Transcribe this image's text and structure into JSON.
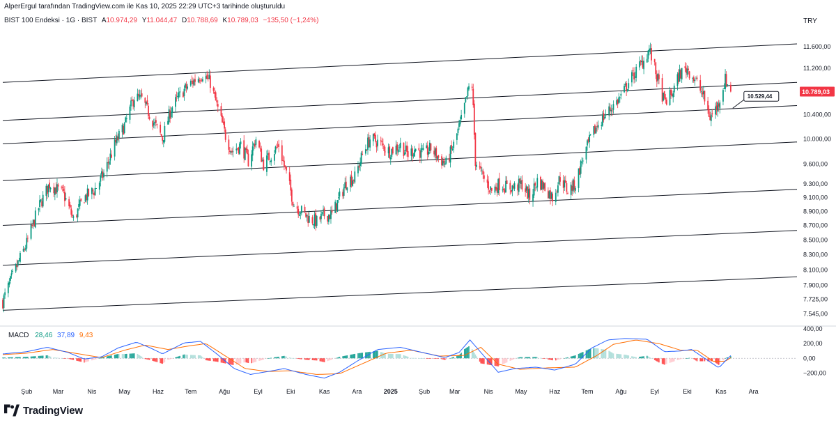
{
  "header": {
    "attribution": "AlperErgul tarafından TradingView.com ile Kas 10, 2025 22:29 UTC+3 tarihinde oluşturuldu",
    "symbol": "BIST 100 Endeksi · 1G · BIST",
    "open_label": "A",
    "open": "10.974,29",
    "high_label": "Y",
    "high": "11.044,47",
    "low_label": "D",
    "low": "10.788,69",
    "close_label": "K",
    "close": "10.789,03",
    "change": "−135,50 (−1,24%)"
  },
  "currency_button": "TRY",
  "macd_legend": {
    "label": "MACD",
    "hist": "28,46",
    "macd": "37,89",
    "signal": "9,43"
  },
  "brand": {
    "name": "TradingView"
  },
  "colors": {
    "up": "#089981",
    "down": "#f23645",
    "macd": "#2962ff",
    "signal": "#ff6d00",
    "channel": "#131722"
  },
  "chart_data": [
    {
      "type": "candlestick",
      "title": "BIST 100 Endeksi · 1G · BIST",
      "interval": "1G",
      "y_scale": "log",
      "y_ticks": [
        "11.600,00",
        "11.200,00",
        "10.800,00",
        "10.400,00",
        "10.000,00",
        "9.600,00",
        "9.300,00",
        "9.100,00",
        "8.900,00",
        "8.700,00",
        "8.500,00",
        "8.300,00",
        "8.100,00",
        "7.900,00",
        "7.725,00",
        "7.545,00"
      ],
      "y_tick_values": [
        11600,
        11200,
        10800,
        10400,
        10000,
        9600,
        9300,
        9100,
        8900,
        8700,
        8500,
        8300,
        8100,
        7900,
        7725,
        7545
      ],
      "ylim": [
        7450,
        11900
      ],
      "x_ticks": [
        "Şub",
        "Mar",
        "Nis",
        "May",
        "Haz",
        "Tem",
        "Ağu",
        "Eyl",
        "Eki",
        "Kas",
        "Ara",
        "2025",
        "Şub",
        "Mar",
        "Nis",
        "May",
        "Haz",
        "Tem",
        "Ağu",
        "Eyl",
        "Eki",
        "Kas",
        "Ara"
      ],
      "x_tick_dates": [
        "2024-02-01",
        "2024-03-01",
        "2024-04-01",
        "2024-05-01",
        "2024-06-01",
        "2024-07-01",
        "2024-08-01",
        "2024-09-01",
        "2024-10-01",
        "2024-11-01",
        "2024-12-01",
        "2025-01-01",
        "2025-02-01",
        "2025-03-01",
        "2025-04-01",
        "2025-05-01",
        "2025-06-01",
        "2025-07-01",
        "2025-08-01",
        "2025-09-01",
        "2025-10-01",
        "2025-11-01",
        "2025-12-01"
      ],
      "xlim": [
        "2024-01-10",
        "2026-01-10"
      ],
      "price_path": [
        [
          "2024-01-10",
          7700
        ],
        [
          "2024-01-20",
          8050
        ],
        [
          "2024-02-01",
          8450
        ],
        [
          "2024-02-12",
          8950
        ],
        [
          "2024-02-22",
          9300
        ],
        [
          "2024-03-06",
          9150
        ],
        [
          "2024-03-15",
          8780
        ],
        [
          "2024-03-25",
          9100
        ],
        [
          "2024-04-03",
          9200
        ],
        [
          "2024-04-12",
          9450
        ],
        [
          "2024-04-22",
          9900
        ],
        [
          "2024-05-02",
          10250
        ],
        [
          "2024-05-10",
          10700
        ],
        [
          "2024-05-17",
          10650
        ],
        [
          "2024-05-27",
          10300
        ],
        [
          "2024-06-05",
          10000
        ],
        [
          "2024-06-13",
          10500
        ],
        [
          "2024-06-24",
          10800
        ],
        [
          "2024-07-05",
          11000
        ],
        [
          "2024-07-12",
          11100
        ],
        [
          "2024-07-19",
          10950
        ],
        [
          "2024-07-25",
          10550
        ],
        [
          "2024-08-02",
          10050
        ],
        [
          "2024-08-08",
          9800
        ],
        [
          "2024-08-16",
          9900
        ],
        [
          "2024-08-23",
          9650
        ],
        [
          "2024-08-30",
          10000
        ],
        [
          "2024-09-06",
          9600
        ],
        [
          "2024-09-13",
          9750
        ],
        [
          "2024-09-20",
          9900
        ],
        [
          "2024-09-27",
          9450
        ],
        [
          "2024-10-04",
          9000
        ],
        [
          "2024-10-11",
          8900
        ],
        [
          "2024-10-18",
          8800
        ],
        [
          "2024-10-25",
          8750
        ],
        [
          "2024-11-01",
          8850
        ],
        [
          "2024-11-08",
          8850
        ],
        [
          "2024-11-15",
          9100
        ],
        [
          "2024-11-22",
          9350
        ],
        [
          "2024-11-29",
          9400
        ],
        [
          "2024-12-06",
          9750
        ],
        [
          "2024-12-13",
          10000
        ],
        [
          "2024-12-20",
          9950
        ],
        [
          "2024-12-31",
          9800
        ],
        [
          "2025-01-10",
          9900
        ],
        [
          "2025-01-17",
          9750
        ],
        [
          "2025-01-24",
          9850
        ],
        [
          "2025-01-31",
          9750
        ],
        [
          "2025-02-07",
          9850
        ],
        [
          "2025-02-14",
          9700
        ],
        [
          "2025-02-21",
          9600
        ],
        [
          "2025-02-28",
          9900
        ],
        [
          "2025-03-07",
          10300
        ],
        [
          "2025-03-14",
          10850
        ],
        [
          "2025-03-17",
          10900
        ],
        [
          "2025-03-20",
          9650
        ],
        [
          "2025-03-27",
          9400
        ],
        [
          "2025-04-04",
          9200
        ],
        [
          "2025-04-11",
          9300
        ],
        [
          "2025-04-18",
          9250
        ],
        [
          "2025-04-25",
          9250
        ],
        [
          "2025-05-02",
          9300
        ],
        [
          "2025-05-09",
          9100
        ],
        [
          "2025-05-16",
          9350
        ],
        [
          "2025-05-23",
          9250
        ],
        [
          "2025-05-30",
          9100
        ],
        [
          "2025-06-06",
          9400
        ],
        [
          "2025-06-13",
          9200
        ],
        [
          "2025-06-20",
          9300
        ],
        [
          "2025-06-27",
          9700
        ],
        [
          "2025-07-04",
          10000
        ],
        [
          "2025-07-11",
          10250
        ],
        [
          "2025-07-18",
          10400
        ],
        [
          "2025-07-25",
          10550
        ],
        [
          "2025-08-01",
          10700
        ],
        [
          "2025-08-08",
          10950
        ],
        [
          "2025-08-15",
          11150
        ],
        [
          "2025-08-22",
          11350
        ],
        [
          "2025-08-27",
          11550
        ],
        [
          "2025-09-03",
          11050
        ],
        [
          "2025-09-10",
          10600
        ],
        [
          "2025-09-17",
          10750
        ],
        [
          "2025-09-24",
          11100
        ],
        [
          "2025-10-01",
          11200
        ],
        [
          "2025-10-08",
          11000
        ],
        [
          "2025-10-15",
          10750
        ],
        [
          "2025-10-22",
          10350
        ],
        [
          "2025-10-29",
          10550
        ],
        [
          "2025-11-05",
          11000
        ],
        [
          "2025-11-10",
          10789
        ]
      ],
      "channel_lines": [
        [
          [
            "2024-01-10",
            10950
          ],
          [
            "2026-01-10",
            11650
          ]
        ],
        [
          [
            "2024-01-10",
            10300
          ],
          [
            "2026-01-10",
            10950
          ]
        ],
        [
          [
            "2024-01-10",
            9920
          ],
          [
            "2026-01-10",
            10550
          ]
        ],
        [
          [
            "2024-01-10",
            9350
          ],
          [
            "2026-01-10",
            9950
          ]
        ],
        [
          [
            "2024-01-10",
            8700
          ],
          [
            "2026-01-10",
            9220
          ]
        ],
        [
          [
            "2024-01-10",
            8160
          ],
          [
            "2026-01-10",
            8630
          ]
        ],
        [
          [
            "2024-01-10",
            7590
          ],
          [
            "2026-01-10",
            8010
          ]
        ]
      ],
      "last_price": "10.789,03",
      "annotation": {
        "label": "10.529,44",
        "value": 10529.44,
        "date": "2025-11-17"
      }
    },
    {
      "type": "macd",
      "title": "MACD",
      "y_ticks": [
        "400,00",
        "200,00",
        "0,00",
        "−200,00"
      ],
      "y_tick_values": [
        400,
        200,
        0,
        -200
      ],
      "ylim": [
        -320,
        420
      ],
      "macd_path": [
        [
          "2024-01-10",
          60
        ],
        [
          "2024-02-01",
          90
        ],
        [
          "2024-02-20",
          150
        ],
        [
          "2024-03-10",
          80
        ],
        [
          "2024-03-25",
          -10
        ],
        [
          "2024-04-10",
          20
        ],
        [
          "2024-04-25",
          140
        ],
        [
          "2024-05-12",
          220
        ],
        [
          "2024-05-25",
          140
        ],
        [
          "2024-06-05",
          60
        ],
        [
          "2024-06-25",
          210
        ],
        [
          "2024-07-10",
          230
        ],
        [
          "2024-07-25",
          60
        ],
        [
          "2024-08-10",
          -140
        ],
        [
          "2024-08-25",
          -220
        ],
        [
          "2024-09-10",
          -180
        ],
        [
          "2024-09-25",
          -140
        ],
        [
          "2024-10-15",
          -220
        ],
        [
          "2024-11-01",
          -270
        ],
        [
          "2024-11-15",
          -190
        ],
        [
          "2024-12-01",
          -40
        ],
        [
          "2024-12-20",
          120
        ],
        [
          "2025-01-10",
          150
        ],
        [
          "2025-01-30",
          80
        ],
        [
          "2025-02-20",
          10
        ],
        [
          "2025-03-05",
          80
        ],
        [
          "2025-03-15",
          250
        ],
        [
          "2025-03-28",
          30
        ],
        [
          "2025-04-10",
          -190
        ],
        [
          "2025-04-25",
          -140
        ],
        [
          "2025-05-15",
          -120
        ],
        [
          "2025-06-01",
          -160
        ],
        [
          "2025-06-20",
          -80
        ],
        [
          "2025-07-05",
          140
        ],
        [
          "2025-07-20",
          250
        ],
        [
          "2025-08-05",
          270
        ],
        [
          "2025-08-25",
          260
        ],
        [
          "2025-09-10",
          90
        ],
        [
          "2025-09-25",
          100
        ],
        [
          "2025-10-05",
          120
        ],
        [
          "2025-10-20",
          -30
        ],
        [
          "2025-10-30",
          -130
        ],
        [
          "2025-11-10",
          38
        ]
      ],
      "signal_path": [
        [
          "2024-01-10",
          50
        ],
        [
          "2024-02-01",
          70
        ],
        [
          "2024-02-25",
          120
        ],
        [
          "2024-03-20",
          60
        ],
        [
          "2024-04-10",
          10
        ],
        [
          "2024-05-01",
          110
        ],
        [
          "2024-05-20",
          180
        ],
        [
          "2024-06-10",
          120
        ],
        [
          "2024-06-30",
          170
        ],
        [
          "2024-07-15",
          200
        ],
        [
          "2024-08-01",
          40
        ],
        [
          "2024-08-20",
          -140
        ],
        [
          "2024-09-10",
          -180
        ],
        [
          "2024-10-01",
          -170
        ],
        [
          "2024-10-25",
          -220
        ],
        [
          "2024-11-15",
          -210
        ],
        [
          "2024-12-05",
          -80
        ],
        [
          "2024-12-28",
          70
        ],
        [
          "2025-01-20",
          110
        ],
        [
          "2025-02-15",
          30
        ],
        [
          "2025-03-10",
          40
        ],
        [
          "2025-03-25",
          150
        ],
        [
          "2025-04-10",
          -80
        ],
        [
          "2025-04-30",
          -150
        ],
        [
          "2025-05-25",
          -130
        ],
        [
          "2025-06-20",
          -120
        ],
        [
          "2025-07-10",
          40
        ],
        [
          "2025-07-25",
          190
        ],
        [
          "2025-08-15",
          250
        ],
        [
          "2025-09-05",
          200
        ],
        [
          "2025-09-25",
          110
        ],
        [
          "2025-10-10",
          110
        ],
        [
          "2025-10-25",
          -40
        ],
        [
          "2025-11-05",
          -40
        ],
        [
          "2025-11-10",
          9
        ]
      ]
    }
  ]
}
